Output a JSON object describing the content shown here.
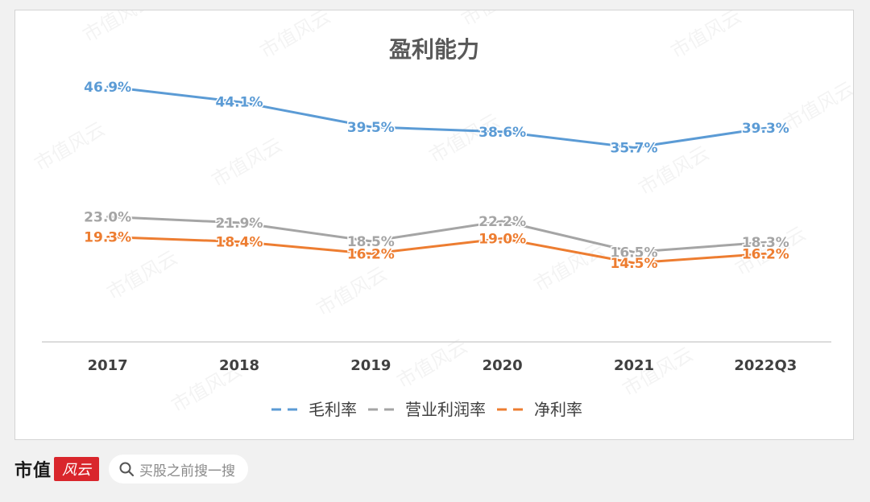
{
  "chart_data": {
    "type": "line",
    "title": "盈利能力",
    "categories": [
      "2017",
      "2018",
      "2019",
      "2020",
      "2021",
      "2022Q3"
    ],
    "ylim": [
      0,
      55
    ],
    "grid": false,
    "legend_position": "bottom",
    "series": [
      {
        "name": "毛利率",
        "color": "#5b9bd5",
        "values": [
          46.9,
          44.1,
          39.5,
          38.6,
          35.7,
          39.3
        ],
        "labels": [
          "46.9%",
          "44.1%",
          "39.5%",
          "38.6%",
          "35.7%",
          "39.3%"
        ]
      },
      {
        "name": "营业利润率",
        "color": "#a5a5a5",
        "values": [
          23.0,
          21.9,
          18.5,
          22.2,
          16.5,
          18.3
        ],
        "labels": [
          "23.0%",
          "21.9%",
          "18.5%",
          "22.2%",
          "16.5%",
          "18.3%"
        ]
      },
      {
        "name": "净利率",
        "color": "#ed7d31",
        "values": [
          19.3,
          18.4,
          16.2,
          19.0,
          14.5,
          16.2
        ],
        "labels": [
          "19.3%",
          "18.4%",
          "16.2%",
          "19.0%",
          "14.5%",
          "16.2%"
        ]
      }
    ]
  },
  "watermark": "市值风云",
  "footer": {
    "logo_text": "市值",
    "logo_seal": "风云",
    "search_placeholder": "买股之前搜一搜",
    "search_icon": "search-icon"
  }
}
